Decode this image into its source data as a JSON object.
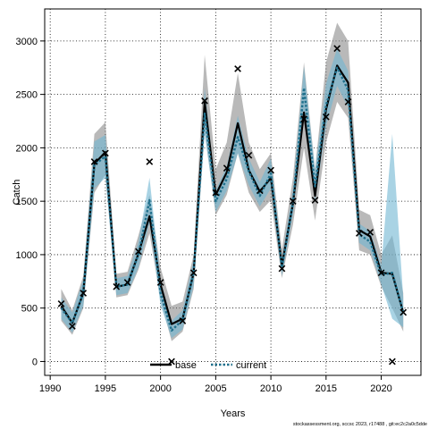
{
  "chart_data": {
    "type": "line",
    "xlabel": "Years",
    "ylabel": "Catch",
    "xlim": [
      1989.5,
      2023.6
    ],
    "ylim": [
      -130,
      3300
    ],
    "x_ticks": [
      1990,
      1995,
      2000,
      2005,
      2010,
      2015,
      2020
    ],
    "y_ticks": [
      0,
      500,
      1000,
      1500,
      2000,
      2500,
      3000
    ],
    "grid": true,
    "legend_position": "bottom-center",
    "years": [
      1991,
      1992,
      1993,
      1994,
      1995,
      1996,
      1997,
      1998,
      1999,
      2000,
      2001,
      2002,
      2003,
      2004,
      2005,
      2006,
      2007,
      2008,
      2009,
      2010,
      2011,
      2012,
      2013,
      2014,
      2015,
      2016,
      2017,
      2018,
      2019,
      2020,
      2021,
      2022
    ],
    "series": [
      {
        "name": "base",
        "line_style": "solid",
        "color": "#000000",
        "band_color": "#7f7f7f",
        "values": [
          520,
          360,
          640,
          1850,
          1960,
          700,
          720,
          1010,
          1360,
          720,
          350,
          400,
          830,
          2430,
          1560,
          1770,
          2230,
          1790,
          1590,
          1720,
          900,
          1480,
          2330,
          1550,
          2360,
          2770,
          2610,
          1230,
          1170,
          830,
          820,
          460
        ],
        "lower": [
          380,
          250,
          500,
          1580,
          1750,
          600,
          620,
          860,
          1200,
          580,
          190,
          280,
          680,
          2150,
          1370,
          1560,
          1950,
          1580,
          1400,
          1510,
          780,
          1280,
          2000,
          1320,
          2050,
          2430,
          2280,
          1040,
          1000,
          700,
          500,
          280
        ],
        "upper": [
          680,
          480,
          800,
          2130,
          2240,
          820,
          840,
          1180,
          1560,
          880,
          520,
          560,
          1000,
          2870,
          1800,
          2050,
          2700,
          2050,
          1800,
          1950,
          1050,
          1720,
          2800,
          1800,
          2800,
          3170,
          3000,
          1420,
          1370,
          1000,
          1180,
          640
        ]
      },
      {
        "name": "current",
        "line_style": "dotted",
        "color": "#1f6f8b",
        "band_color": "#6fb6d2",
        "values": [
          500,
          360,
          640,
          1840,
          1920,
          700,
          720,
          1000,
          1510,
          640,
          290,
          390,
          830,
          2320,
          1500,
          1710,
          2100,
          1780,
          1550,
          1760,
          880,
          1480,
          2560,
          1640,
          2400,
          2750,
          2540,
          1190,
          1120,
          810,
          830,
          460
        ],
        "lower": [
          400,
          270,
          520,
          1620,
          1720,
          620,
          640,
          880,
          1300,
          530,
          220,
          300,
          710,
          2130,
          1400,
          1600,
          1950,
          1650,
          1450,
          1620,
          800,
          1380,
          2350,
          1500,
          2200,
          2580,
          2380,
          1110,
          1040,
          720,
          400,
          320
        ],
        "upper": [
          600,
          460,
          760,
          2060,
          2120,
          780,
          800,
          1120,
          1720,
          760,
          380,
          480,
          950,
          2560,
          1600,
          1830,
          2300,
          1900,
          1680,
          1900,
          960,
          1600,
          2760,
          1790,
          2600,
          2930,
          2720,
          1290,
          1220,
          900,
          2130,
          600
        ]
      }
    ],
    "observed": {
      "name": "observed",
      "marker": "x",
      "values": [
        540,
        330,
        640,
        1870,
        1950,
        700,
        740,
        1030,
        1870,
        740,
        0,
        380,
        830,
        2440,
        1580,
        1810,
        2740,
        1930,
        1600,
        1790,
        870,
        1500,
        2270,
        1510,
        2290,
        2930,
        2430,
        1200,
        1210,
        830,
        0,
        460
      ]
    }
  },
  "legend": {
    "base_label": "base",
    "current_label": "current"
  },
  "footer_text": "stockassessment.org, sccsc 2023, r17488 , git:ec2c2a0c5dde"
}
